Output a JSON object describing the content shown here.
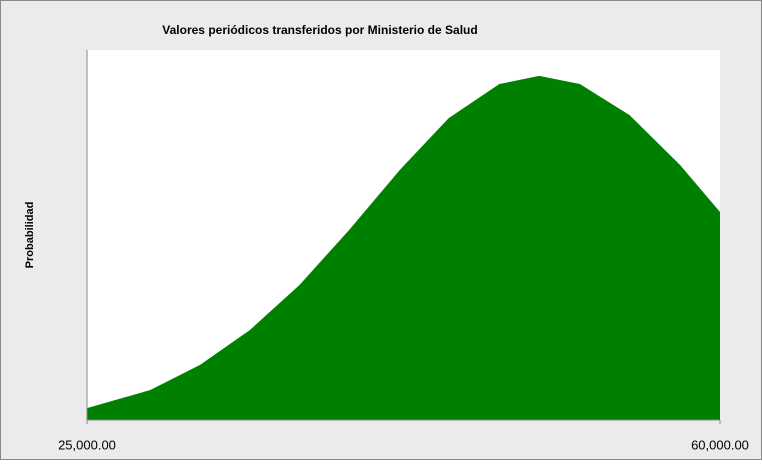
{
  "chart_data": {
    "type": "area",
    "title": "Valores periódicos transferidos por Ministerio de Salud",
    "y_label": "Probabilidad",
    "x": [
      25000,
      28500,
      31250,
      34000,
      36750,
      39500,
      42300,
      45000,
      47800,
      50000,
      52250,
      55000,
      57800,
      60000
    ],
    "values": [
      0.032,
      0.081,
      0.149,
      0.243,
      0.365,
      0.514,
      0.676,
      0.816,
      0.908,
      0.93,
      0.908,
      0.824,
      0.689,
      0.562
    ],
    "color": "#008000",
    "xlim": [
      25000,
      60000
    ],
    "xticks": [
      {
        "value": 25000,
        "label": "25,000.00"
      },
      {
        "value": 60000,
        "label": "60,000.00"
      }
    ],
    "ylim": [
      0,
      1
    ]
  }
}
